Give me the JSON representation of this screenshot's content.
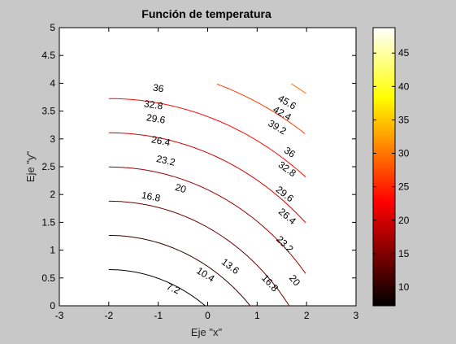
{
  "chart_data": {
    "type": "contour",
    "title": "Función de temperatura",
    "xlabel": "Eje \"x\"",
    "ylabel": "Eje \"y\"",
    "xlim": [
      -3,
      3
    ],
    "ylim": [
      0,
      5
    ],
    "xticks": [
      "-3",
      "-2",
      "-1",
      "0",
      "1",
      "2",
      "3"
    ],
    "yticks": [
      "0",
      "0.5",
      "1",
      "1.5",
      "2",
      "2.5",
      "3",
      "3.5",
      "4",
      "4.5",
      "5"
    ],
    "domain": {
      "x": [
        -2,
        2
      ],
      "y": [
        0,
        4
      ]
    },
    "grid": false,
    "colormap": "hot",
    "colorbar": {
      "range": [
        7.2,
        48.8
      ],
      "ticks": [
        "10",
        "15",
        "20",
        "25",
        "30",
        "35",
        "40",
        "45"
      ]
    },
    "levels": [
      7.2,
      10.4,
      13.6,
      16.8,
      20,
      23.2,
      26.4,
      29.6,
      32.8,
      36,
      39.2,
      42.4,
      45.6,
      48.8
    ],
    "labels": [
      {
        "text": "7.2",
        "x": -0.7,
        "y": 0.3
      },
      {
        "text": "10.4",
        "x": -0.05,
        "y": 0.55
      },
      {
        "text": "13.6",
        "x": 0.45,
        "y": 0.7
      },
      {
        "text": "16.8",
        "x": 1.25,
        "y": 0.4
      },
      {
        "text": "20",
        "x": 1.75,
        "y": 0.45
      },
      {
        "text": "16.8",
        "x": -1.15,
        "y": 1.95
      },
      {
        "text": "20",
        "x": -0.55,
        "y": 2.1
      },
      {
        "text": "23.2",
        "x": -0.85,
        "y": 2.6
      },
      {
        "text": "23.2",
        "x": 1.55,
        "y": 1.1
      },
      {
        "text": "26.4",
        "x": -0.95,
        "y": 2.95
      },
      {
        "text": "26.4",
        "x": 1.6,
        "y": 1.6
      },
      {
        "text": "29.6",
        "x": -1.05,
        "y": 3.35
      },
      {
        "text": "29.6",
        "x": 1.55,
        "y": 2.0
      },
      {
        "text": "32.8",
        "x": -1.1,
        "y": 3.6
      },
      {
        "text": "32.8",
        "x": 1.6,
        "y": 2.45
      },
      {
        "text": "36",
        "x": -1.0,
        "y": 3.9
      },
      {
        "text": "36",
        "x": 1.65,
        "y": 2.75
      },
      {
        "text": "39.2",
        "x": 1.4,
        "y": 3.2
      },
      {
        "text": "42.4",
        "x": 1.5,
        "y": 3.45
      },
      {
        "text": "45.6",
        "x": 1.6,
        "y": 3.65
      }
    ]
  }
}
